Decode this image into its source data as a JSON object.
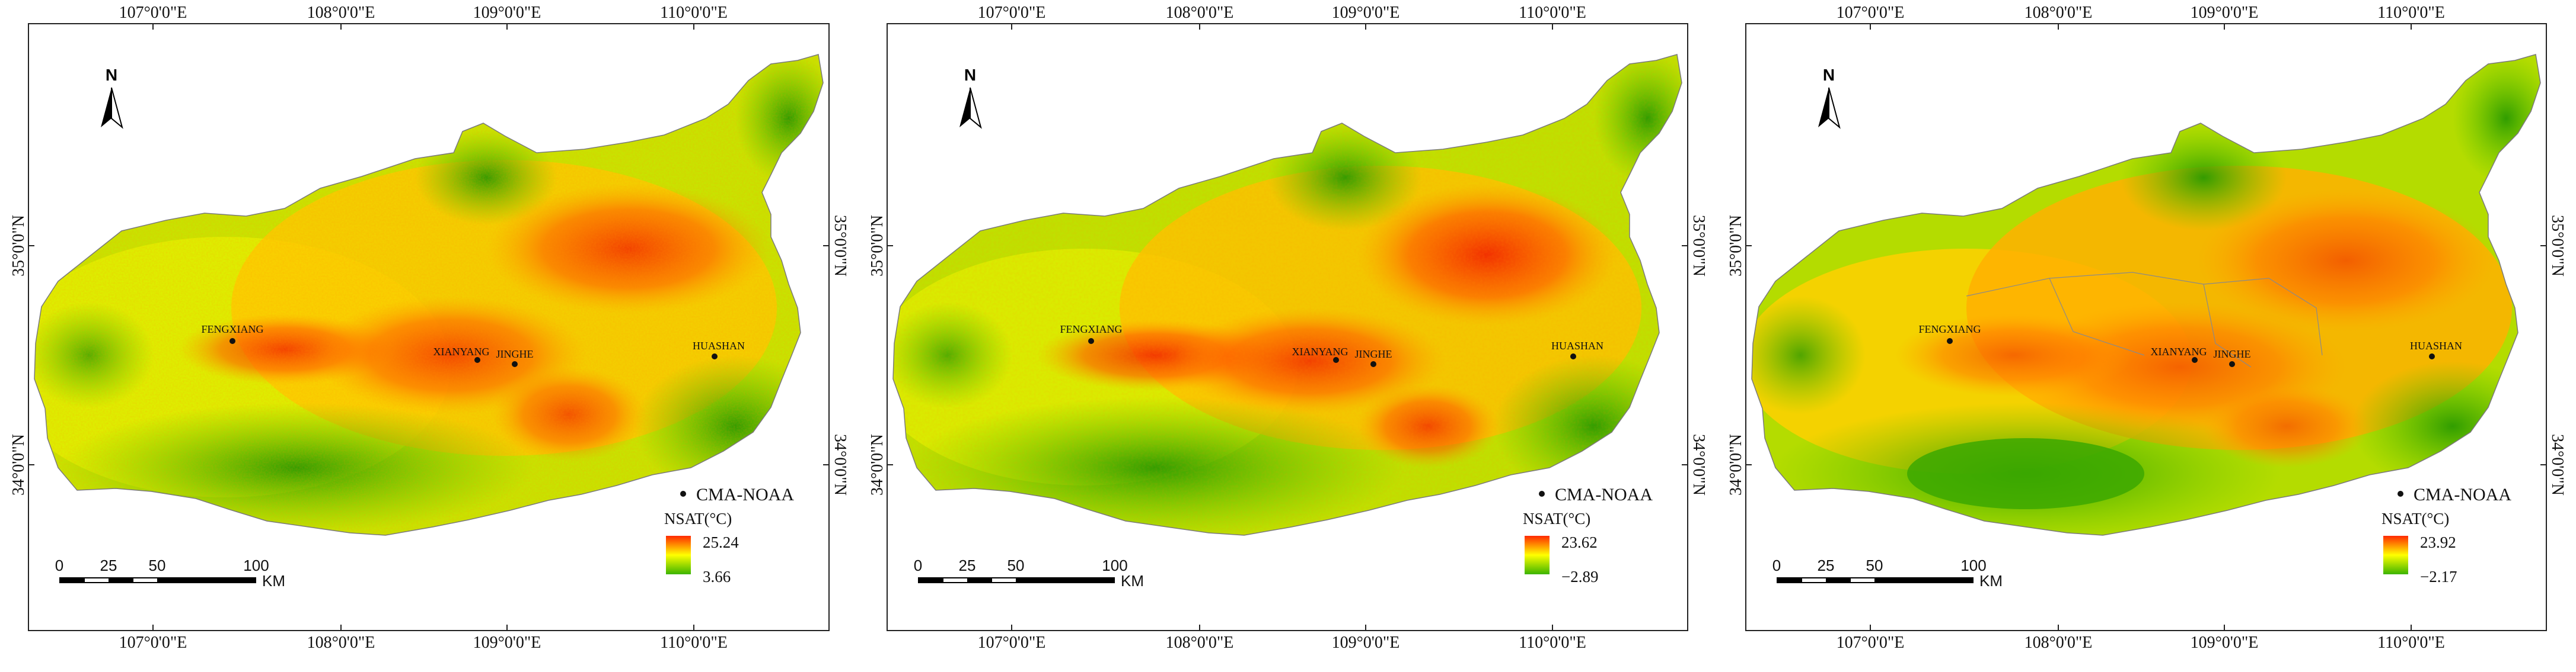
{
  "map": {
    "lon_labels": [
      "107°0'0\"E",
      "108°0'0\"E",
      "109°0'0\"E",
      "110°0'0\"E"
    ],
    "lat_labels": [
      "35°0'0\"N",
      "34°0'0\"N"
    ],
    "north_label": "N",
    "cities": [
      "FENGXIANG",
      "XIANYANG",
      "JINGHE",
      "HUASHAN"
    ],
    "station_legend": "CMA-NOAA",
    "scale_labels": [
      "0",
      "25",
      "50",
      "100"
    ],
    "scale_unit": "KM",
    "legend_title": "NSAT(°C)",
    "colors": {
      "high": "#ff2a00",
      "mid": "#ffff00",
      "low": "#3cb400",
      "station": "#111111"
    }
  },
  "panels": [
    {
      "max": "25.24",
      "min": "3.66"
    },
    {
      "max": "23.62",
      "min": "−2.89"
    },
    {
      "max": "23.92",
      "min": "−2.17"
    }
  ]
}
